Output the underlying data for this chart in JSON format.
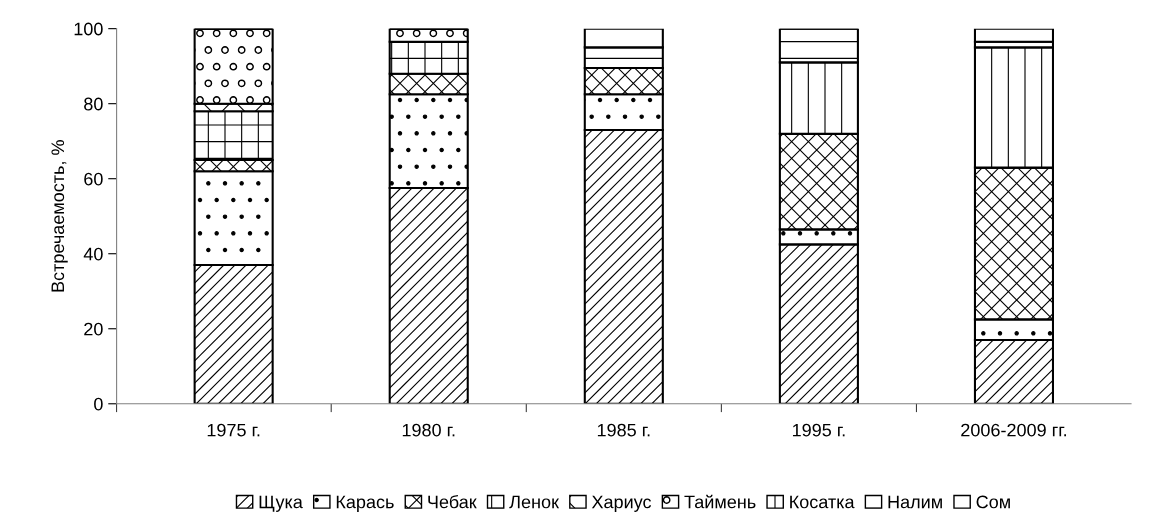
{
  "chart_data": {
    "type": "bar",
    "stacked": true,
    "ylabel": "Встречаемость, %",
    "categories": [
      "1975 г.",
      "1980 г.",
      "1985 г.",
      "1995 г.",
      "2006-2009 гг."
    ],
    "ylim": [
      0,
      100
    ],
    "yticks": [
      0,
      20,
      40,
      60,
      80,
      100
    ],
    "grid": false,
    "legend": "bottom",
    "series": [
      {
        "name": "Щука",
        "color": "#000000",
        "values": [
          37,
          57.5,
          73,
          42.5,
          17
        ]
      },
      {
        "name": "Карась",
        "color": "#000000",
        "values": [
          25,
          25,
          9.5,
          4,
          5.5
        ]
      },
      {
        "name": "Чебак",
        "color": "#000000",
        "values": [
          3,
          5.5,
          7,
          25.5,
          40.5
        ]
      },
      {
        "name": "Ленок",
        "color": "#000000",
        "values": [
          13,
          8.5,
          0,
          0,
          0
        ]
      },
      {
        "name": "Хариус",
        "color": "#000000",
        "values": [
          2,
          0,
          0,
          0,
          0
        ]
      },
      {
        "name": "Таймень",
        "color": "#000000",
        "values": [
          20,
          3.5,
          0,
          0,
          0
        ]
      },
      {
        "name": "Косатка",
        "color": "#000000",
        "values": [
          0,
          0,
          0,
          19,
          32
        ]
      },
      {
        "name": "Налим",
        "color": "#000000",
        "values": [
          0,
          0,
          5.5,
          9,
          1.5
        ]
      },
      {
        "name": "Сом",
        "color": "#ffffff",
        "values": [
          0,
          0,
          5,
          0,
          3.5
        ]
      }
    ]
  }
}
